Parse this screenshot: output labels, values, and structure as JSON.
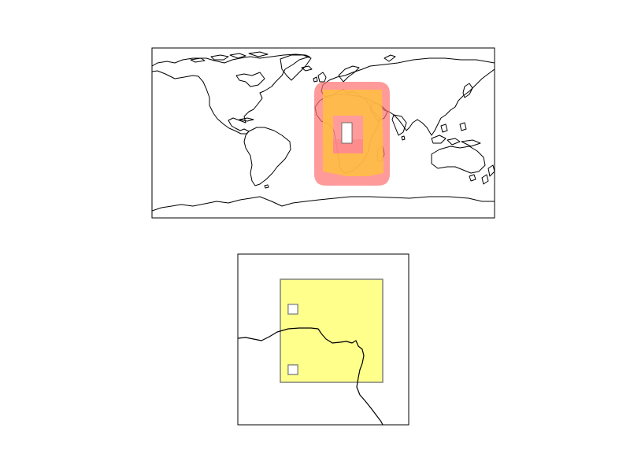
{
  "figure": {
    "background": "#ffffff",
    "axes_edge_color": "#000000",
    "coastline_color": "#000000"
  },
  "maps": [
    {
      "name": "world-map",
      "projection": "plate-carree",
      "extent": {
        "lon": [
          -180,
          180
        ],
        "lat": [
          -90,
          90
        ]
      },
      "coastlines": true,
      "overlays": [
        {
          "name": "outer-buffer",
          "shape": "rounded-rectangle-with-hole",
          "fill": "#ff6f6f",
          "opacity": 0.7,
          "outer": {
            "lon": [
              0,
              80
            ],
            "lat": [
              -55,
              40
            ]
          },
          "hole": {
            "lon": [
              27,
              47
            ],
            "lat": [
              -26,
              5
            ]
          }
        },
        {
          "name": "inner-box",
          "shape": "rectangle-with-hole",
          "fill": "#ffbf40",
          "opacity": 0.85,
          "outer": {
            "lon": [
              6,
              73
            ],
            "lat": [
              -48,
              33
            ]
          },
          "hole": {
            "lon": [
              20,
              54
            ],
            "lat": [
              -32,
              10
            ]
          }
        },
        {
          "name": "ring",
          "shape": "rectangle-with-hole",
          "fill": "#ff8a8a",
          "opacity": 0.85,
          "outer": {
            "lon": [
              20,
              54
            ],
            "lat": [
              -32,
              10
            ]
          },
          "hole": {
            "lon": [
              34,
              46
            ],
            "lat": [
              -17,
              4
            ]
          }
        }
      ]
    },
    {
      "name": "detail-map",
      "projection": "plate-carree",
      "coastlines": true,
      "overlays": [
        {
          "name": "yellow-polygon",
          "shape": "rectangle-with-holes",
          "fill": "#ffff80",
          "edge": "#808080",
          "opacity": 0.9,
          "holes": [
            {
              "name": "upper-hole"
            },
            {
              "name": "lower-hole"
            }
          ]
        }
      ]
    }
  ]
}
